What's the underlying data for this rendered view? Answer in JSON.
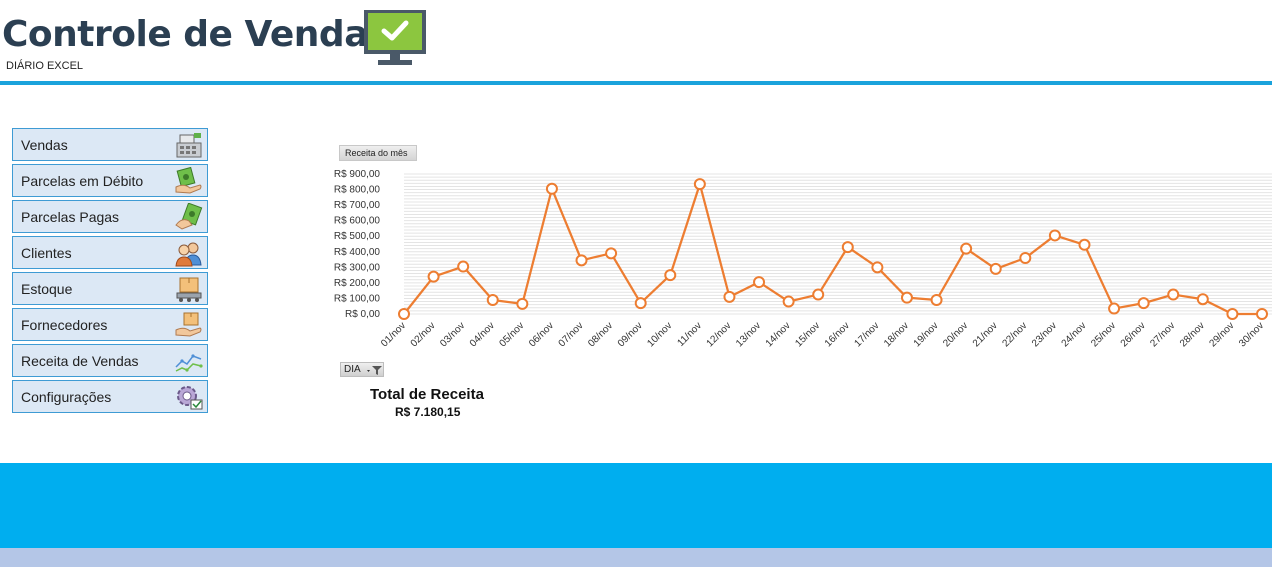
{
  "header": {
    "title": "Controle de Vendas",
    "subtitle": "DIÁRIO EXCEL",
    "icon": "monitor-check-icon"
  },
  "menu": {
    "items": [
      {
        "label": "Vendas",
        "icon": "cash-register-icon"
      },
      {
        "label": "Parcelas em Débito",
        "icon": "money-hand-icon"
      },
      {
        "label": "Parcelas Pagas",
        "icon": "money-paid-icon"
      },
      {
        "label": "Clientes",
        "icon": "customers-icon"
      },
      {
        "label": "Estoque",
        "icon": "box-conveyor-icon"
      },
      {
        "label": "Fornecedores",
        "icon": "box-hand-icon"
      },
      {
        "label": "Receita de Vendas",
        "icon": "line-trend-icon"
      },
      {
        "label": "Configurações",
        "icon": "gear-icon"
      }
    ]
  },
  "chart_controls": {
    "title_button": "Receita do mês",
    "axis_filter_button": "DIA"
  },
  "summary": {
    "total_label": "Total de Receita",
    "total_value": "R$ 7.180,15"
  },
  "colors": {
    "accent": "#1aa3dc",
    "footer": "#00aeef",
    "footer_bottom": "#b4c6e7",
    "series": "#ed7d31",
    "menu_bg": "#dce8f5"
  },
  "chart_data": {
    "type": "line",
    "title": "",
    "xlabel": "",
    "ylabel": "",
    "categories": [
      "01/nov",
      "02/nov",
      "03/nov",
      "04/nov",
      "05/nov",
      "06/nov",
      "07/nov",
      "08/nov",
      "09/nov",
      "10/nov",
      "11/nov",
      "12/nov",
      "13/nov",
      "14/nov",
      "15/nov",
      "16/nov",
      "17/nov",
      "18/nov",
      "19/nov",
      "20/nov",
      "21/nov",
      "22/nov",
      "23/nov",
      "24/nov",
      "25/nov",
      "26/nov",
      "27/nov",
      "28/nov",
      "29/nov",
      "30/nov"
    ],
    "series": [
      {
        "values": [
          0,
          240,
          305,
          90,
          65,
          805,
          345,
          390,
          70,
          250,
          835,
          110,
          205,
          80,
          125,
          430,
          300,
          105,
          90,
          420,
          290,
          360,
          505,
          445,
          35,
          70,
          125,
          95,
          0,
          0
        ]
      }
    ],
    "yticks": [
      "R$ 0,00",
      "R$ 100,00",
      "R$ 200,00",
      "R$ 300,00",
      "R$ 400,00",
      "R$ 500,00",
      "R$ 600,00",
      "R$ 700,00",
      "R$ 800,00",
      "R$ 900,00"
    ],
    "ylim": [
      0,
      900
    ],
    "grid": true,
    "legend": "none"
  }
}
